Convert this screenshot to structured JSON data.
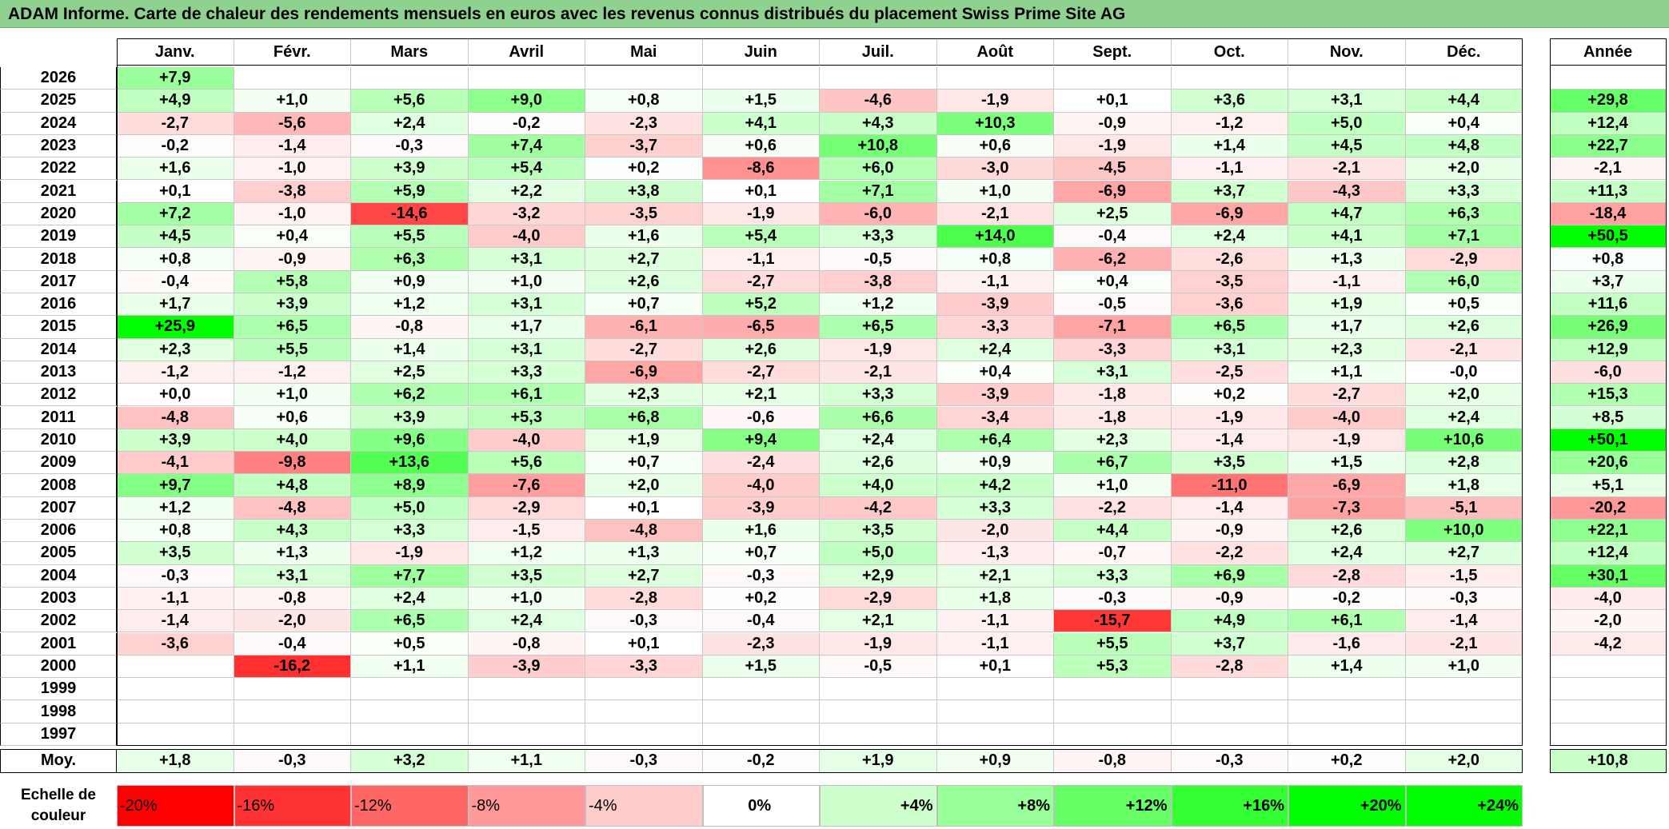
{
  "title": "ADAM Informe. Carte de chaleur des rendements mensuels en euros avec les revenus connus distribués du placement Swiss Prime Site AG",
  "chart_data": {
    "type": "heatmap",
    "title": "ADAM Informe. Carte de chaleur des rendements mensuels en euros avec les revenus connus distribués du placement Swiss Prime Site AG",
    "columns": [
      "Janv.",
      "Févr.",
      "Mars",
      "Avril",
      "Mai",
      "Juin",
      "Juil.",
      "Août",
      "Sept.",
      "Oct.",
      "Nov.",
      "Déc."
    ],
    "annual_label": "Année",
    "average_label": "Moy.",
    "rows": [
      {
        "year": "2026",
        "values": [
          "+7,9",
          "",
          "",
          "",
          "",
          "",
          "",
          "",
          "",
          "",
          "",
          ""
        ],
        "annual": ""
      },
      {
        "year": "2025",
        "values": [
          "+4,9",
          "+1,0",
          "+5,6",
          "+9,0",
          "+0,8",
          "+1,5",
          "-4,6",
          "-1,9",
          "+0,1",
          "+3,6",
          "+3,1",
          "+4,4"
        ],
        "annual": "+29,8"
      },
      {
        "year": "2024",
        "values": [
          "-2,7",
          "-5,6",
          "+2,4",
          "-0,2",
          "-2,3",
          "+4,1",
          "+4,3",
          "+10,3",
          "-0,9",
          "-1,2",
          "+5,0",
          "+0,4"
        ],
        "annual": "+12,4"
      },
      {
        "year": "2023",
        "values": [
          "-0,2",
          "-1,4",
          "-0,3",
          "+7,4",
          "-3,7",
          "+0,6",
          "+10,8",
          "+0,6",
          "-1,9",
          "+1,4",
          "+4,5",
          "+4,8"
        ],
        "annual": "+22,7"
      },
      {
        "year": "2022",
        "values": [
          "+1,6",
          "-1,0",
          "+3,9",
          "+5,4",
          "+0,2",
          "-8,6",
          "+6,0",
          "-3,0",
          "-4,5",
          "-1,1",
          "-2,1",
          "+2,0"
        ],
        "annual": "-2,1"
      },
      {
        "year": "2021",
        "values": [
          "+0,1",
          "-3,8",
          "+5,9",
          "+2,2",
          "+3,8",
          "+0,1",
          "+7,1",
          "+1,0",
          "-6,9",
          "+3,7",
          "-4,3",
          "+3,3"
        ],
        "annual": "+11,3"
      },
      {
        "year": "2020",
        "values": [
          "+7,2",
          "-1,0",
          "-14,6",
          "-3,2",
          "-3,5",
          "-1,9",
          "-6,0",
          "-2,1",
          "+2,5",
          "-6,9",
          "+4,7",
          "+6,3"
        ],
        "annual": "-18,4"
      },
      {
        "year": "2019",
        "values": [
          "+4,5",
          "+0,4",
          "+5,5",
          "-4,0",
          "+1,6",
          "+5,4",
          "+3,3",
          "+14,0",
          "-0,4",
          "+2,4",
          "+4,1",
          "+7,1"
        ],
        "annual": "+50,5"
      },
      {
        "year": "2018",
        "values": [
          "+0,8",
          "-0,9",
          "+6,3",
          "+3,1",
          "+2,7",
          "-1,1",
          "-0,5",
          "+0,8",
          "-6,2",
          "-2,6",
          "+1,3",
          "-2,9"
        ],
        "annual": "+0,8"
      },
      {
        "year": "2017",
        "values": [
          "-0,4",
          "+5,8",
          "+0,9",
          "+1,0",
          "+2,6",
          "-2,7",
          "-3,8",
          "-1,1",
          "+0,4",
          "-3,5",
          "-1,1",
          "+6,0"
        ],
        "annual": "+3,7"
      },
      {
        "year": "2016",
        "values": [
          "+1,7",
          "+3,9",
          "+1,2",
          "+3,1",
          "+0,7",
          "+5,2",
          "+1,2",
          "-3,9",
          "-0,5",
          "-3,6",
          "+1,9",
          "+0,5"
        ],
        "annual": "+11,6"
      },
      {
        "year": "2015",
        "values": [
          "+25,9",
          "+6,5",
          "-0,8",
          "+1,7",
          "-6,1",
          "-6,5",
          "+6,5",
          "-3,3",
          "-7,1",
          "+6,5",
          "+1,7",
          "+2,6"
        ],
        "annual": "+26,9"
      },
      {
        "year": "2014",
        "values": [
          "+2,3",
          "+5,5",
          "+1,4",
          "+3,1",
          "-2,7",
          "+2,6",
          "-1,9",
          "+2,4",
          "-3,3",
          "+3,1",
          "+2,3",
          "-2,1"
        ],
        "annual": "+12,9"
      },
      {
        "year": "2013",
        "values": [
          "-1,2",
          "-1,2",
          "+2,5",
          "+3,3",
          "-6,9",
          "-2,7",
          "-2,1",
          "+0,4",
          "+3,1",
          "-2,5",
          "+1,1",
          "-0,0"
        ],
        "annual": "-6,0"
      },
      {
        "year": "2012",
        "values": [
          "+0,0",
          "+1,0",
          "+6,2",
          "+6,1",
          "+2,3",
          "+2,1",
          "+3,3",
          "-3,9",
          "-1,8",
          "+0,2",
          "-2,7",
          "+2,0"
        ],
        "annual": "+15,3"
      },
      {
        "year": "2011",
        "values": [
          "-4,8",
          "+0,6",
          "+3,9",
          "+5,3",
          "+6,8",
          "-0,6",
          "+6,6",
          "-3,4",
          "-1,8",
          "-1,9",
          "-4,0",
          "+2,4"
        ],
        "annual": "+8,5"
      },
      {
        "year": "2010",
        "values": [
          "+3,9",
          "+4,0",
          "+9,6",
          "-4,0",
          "+1,9",
          "+9,4",
          "+2,4",
          "+6,4",
          "+2,3",
          "-1,4",
          "-1,9",
          "+10,6"
        ],
        "annual": "+50,1"
      },
      {
        "year": "2009",
        "values": [
          "-4,1",
          "-9,8",
          "+13,6",
          "+5,6",
          "+0,7",
          "-2,4",
          "+2,6",
          "+0,9",
          "+6,7",
          "+3,5",
          "+1,5",
          "+2,8"
        ],
        "annual": "+20,6"
      },
      {
        "year": "2008",
        "values": [
          "+9,7",
          "+4,8",
          "+8,9",
          "-7,6",
          "+2,0",
          "-4,0",
          "+4,0",
          "+4,2",
          "+1,0",
          "-11,0",
          "-6,9",
          "+1,8"
        ],
        "annual": "+5,1"
      },
      {
        "year": "2007",
        "values": [
          "+1,2",
          "-4,8",
          "+5,0",
          "-2,9",
          "+0,1",
          "-3,9",
          "-4,2",
          "+3,3",
          "-2,2",
          "-1,4",
          "-7,3",
          "-5,1"
        ],
        "annual": "-20,2"
      },
      {
        "year": "2006",
        "values": [
          "+0,8",
          "+4,3",
          "+3,3",
          "-1,5",
          "-4,8",
          "+1,6",
          "+3,5",
          "-2,0",
          "+4,4",
          "-0,9",
          "+2,6",
          "+10,0"
        ],
        "annual": "+22,1"
      },
      {
        "year": "2005",
        "values": [
          "+3,5",
          "+1,3",
          "-1,9",
          "+1,2",
          "+1,3",
          "+0,7",
          "+5,0",
          "-1,3",
          "-0,7",
          "-2,2",
          "+2,4",
          "+2,7"
        ],
        "annual": "+12,4"
      },
      {
        "year": "2004",
        "values": [
          "-0,3",
          "+3,1",
          "+7,7",
          "+3,5",
          "+2,7",
          "-0,3",
          "+2,9",
          "+2,1",
          "+3,3",
          "+6,9",
          "-2,8",
          "-1,5"
        ],
        "annual": "+30,1"
      },
      {
        "year": "2003",
        "values": [
          "-1,1",
          "-0,8",
          "+2,4",
          "+1,0",
          "-2,8",
          "+0,2",
          "-2,9",
          "+1,8",
          "-0,3",
          "-0,9",
          "-0,2",
          "-0,3"
        ],
        "annual": "-4,0"
      },
      {
        "year": "2002",
        "values": [
          "-1,4",
          "-2,0",
          "+6,5",
          "+2,4",
          "-0,3",
          "-0,4",
          "+2,1",
          "-1,1",
          "-15,7",
          "+4,9",
          "+6,1",
          "-1,4"
        ],
        "annual": "-2,0"
      },
      {
        "year": "2001",
        "values": [
          "-3,6",
          "-0,4",
          "+0,5",
          "-0,8",
          "+0,1",
          "-2,3",
          "-1,9",
          "-1,1",
          "+5,5",
          "+3,7",
          "-1,6",
          "-2,1"
        ],
        "annual": "-4,2"
      },
      {
        "year": "2000",
        "values": [
          "",
          "-16,2",
          "+1,1",
          "-3,9",
          "-3,3",
          "+1,5",
          "-0,5",
          "+0,1",
          "+5,3",
          "-2,8",
          "+1,4",
          "+1,0"
        ],
        "annual": ""
      },
      {
        "year": "1999",
        "values": [
          "",
          "",
          "",
          "",
          "",
          "",
          "",
          "",
          "",
          "",
          "",
          ""
        ],
        "annual": ""
      },
      {
        "year": "1998",
        "values": [
          "",
          "",
          "",
          "",
          "",
          "",
          "",
          "",
          "",
          "",
          "",
          ""
        ],
        "annual": ""
      },
      {
        "year": "1997",
        "values": [
          "",
          "",
          "",
          "",
          "",
          "",
          "",
          "",
          "",
          "",
          "",
          ""
        ],
        "annual": ""
      }
    ],
    "averages": [
      "+1,8",
      "-0,3",
      "+3,2",
      "+1,1",
      "-0,3",
      "-0,2",
      "+1,9",
      "+0,9",
      "-0,8",
      "-0,3",
      "+0,2",
      "+2,0"
    ],
    "average_annual": "+10,8",
    "color_scale": {
      "label": "Echelle de couleur",
      "stops": [
        {
          "label": "-20%",
          "value": -20,
          "color": "#ff0000"
        },
        {
          "label": "-16%",
          "value": -16,
          "color": "#ff3333"
        },
        {
          "label": "-12%",
          "value": -12,
          "color": "#ff6666"
        },
        {
          "label": "-8%",
          "value": -8,
          "color": "#ff9999"
        },
        {
          "label": "-4%",
          "value": -4,
          "color": "#ffcccc"
        },
        {
          "label": "0%",
          "value": 0,
          "color": "#ffffff"
        },
        {
          "label": "+4%",
          "value": 4,
          "color": "#ccffcc"
        },
        {
          "label": "+8%",
          "value": 8,
          "color": "#99ff99"
        },
        {
          "label": "+12%",
          "value": 12,
          "color": "#66ff66"
        },
        {
          "label": "+16%",
          "value": 16,
          "color": "#33ff33"
        },
        {
          "label": "+20%",
          "value": 20,
          "color": "#00ff00"
        },
        {
          "label": "+24%",
          "value": 24,
          "color": "#00ff00"
        }
      ]
    }
  }
}
